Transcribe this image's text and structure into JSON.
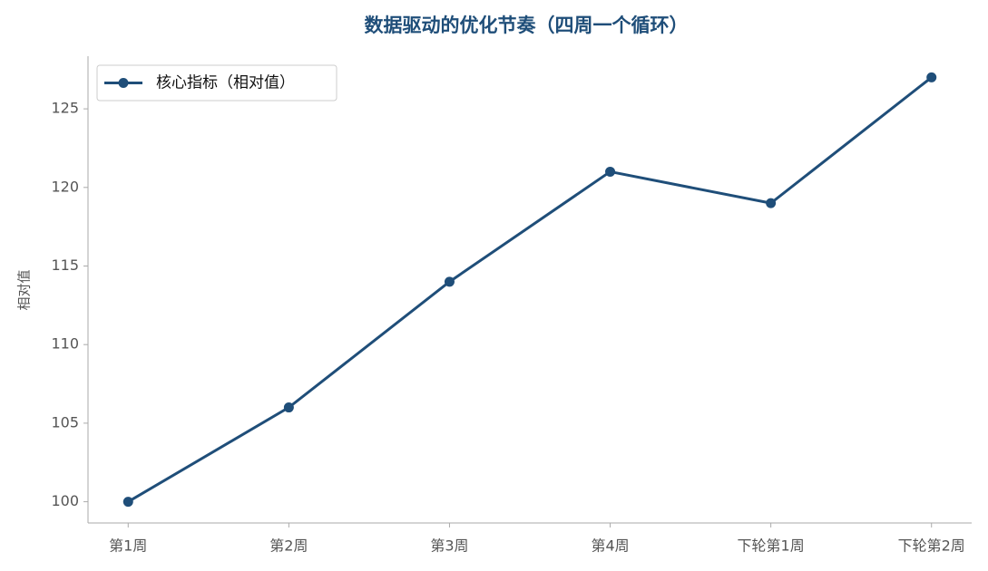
{
  "chart_data": {
    "type": "line",
    "title": "数据驱动的优化节奏（四周一个循环）",
    "y_label": "相对值",
    "categories": [
      "第1周",
      "第2周",
      "第3周",
      "第4周",
      "下轮第1周",
      "下轮第2周"
    ],
    "series": [
      {
        "name": "核心指标（相对值）",
        "color": "#1f4e79",
        "values": [
          100,
          106,
          114,
          121,
          119,
          127
        ]
      }
    ],
    "ylim": [
      98.65,
      128.35
    ],
    "yticks": [
      100,
      105,
      110,
      115,
      120,
      125
    ],
    "grid": false,
    "legend": "upper left"
  }
}
